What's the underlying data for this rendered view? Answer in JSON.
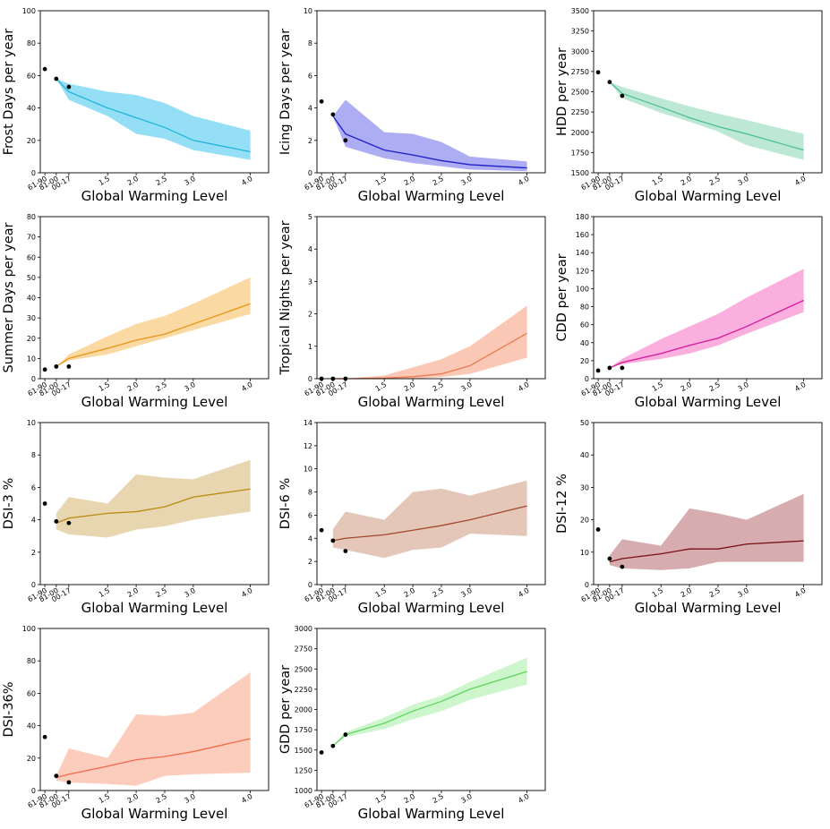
{
  "chart_data": [
    {
      "type": "line",
      "ylabel": "Frost Days per year",
      "xlabel": "Global Warming Level",
      "x_categories": [
        "61-90",
        "81-00",
        "00-17",
        "1.5",
        "2.0",
        "2.5",
        "3.0",
        "4.0"
      ],
      "ylim": [
        0,
        100
      ],
      "yticks": [
        0,
        20,
        40,
        60,
        80,
        100
      ],
      "color": "#1fb6d8",
      "fill_color": "#88dbf4",
      "observations": [
        {
          "x": "61-90",
          "y": 64
        },
        {
          "x": "81-00",
          "y": 58
        },
        {
          "x": "00-17",
          "y": 53
        }
      ],
      "series": [
        {
          "x": [
            "81-00",
            "00-17",
            "1.5",
            "2.0",
            "2.5",
            "3.0",
            "4.0"
          ],
          "values": [
            58,
            50,
            40,
            34,
            28,
            20,
            13
          ]
        }
      ],
      "band_upper": [
        58,
        55,
        50,
        48,
        43,
        35,
        26
      ],
      "band_lower": [
        58,
        45,
        35,
        24,
        21,
        14,
        8
      ]
    },
    {
      "type": "line",
      "ylabel": "Icing Days per year",
      "xlabel": "Global Warming Level",
      "x_categories": [
        "61-90",
        "81-00",
        "00-17",
        "1.5",
        "2.0",
        "2.5",
        "3.0",
        "4.0"
      ],
      "ylim": [
        0,
        10
      ],
      "yticks": [
        0,
        2,
        4,
        6,
        8,
        10
      ],
      "color": "#1e1ec8",
      "fill_color": "#a4a4f2",
      "observations": [
        {
          "x": "61-90",
          "y": 4.4
        },
        {
          "x": "81-00",
          "y": 3.6
        },
        {
          "x": "00-17",
          "y": 2.0
        }
      ],
      "series": [
        {
          "x": [
            "81-00",
            "00-17",
            "1.5",
            "2.0",
            "2.5",
            "3.0",
            "4.0"
          ],
          "values": [
            3.5,
            2.4,
            1.4,
            1.1,
            0.75,
            0.5,
            0.3
          ]
        }
      ],
      "band_upper": [
        3.5,
        4.5,
        2.5,
        2.4,
        1.9,
        1.0,
        0.7
      ],
      "band_lower": [
        3.5,
        1.6,
        0.9,
        0.6,
        0.4,
        0.2,
        0.1
      ]
    },
    {
      "type": "line",
      "ylabel": "HDD per year",
      "xlabel": "Global Warming Level",
      "x_categories": [
        "61-90",
        "81-00",
        "00-17",
        "1.5",
        "2.0",
        "2.5",
        "3.0",
        "4.0"
      ],
      "ylim": [
        1500,
        3500
      ],
      "yticks": [
        1500,
        1750,
        2000,
        2250,
        2500,
        2750,
        3000,
        3250,
        3500
      ],
      "color": "#4cbf94",
      "fill_color": "#b6e6d2",
      "observations": [
        {
          "x": "61-90",
          "y": 2740
        },
        {
          "x": "81-00",
          "y": 2620
        },
        {
          "x": "00-17",
          "y": 2450
        }
      ],
      "series": [
        {
          "x": [
            "81-00",
            "00-17",
            "1.5",
            "2.0",
            "2.5",
            "3.0",
            "4.0"
          ],
          "values": [
            2620,
            2480,
            2310,
            2180,
            2070,
            1980,
            1780
          ]
        }
      ],
      "band_upper": [
        2620,
        2560,
        2420,
        2320,
        2230,
        2150,
        1980
      ],
      "band_lower": [
        2620,
        2420,
        2240,
        2130,
        2010,
        1840,
        1660
      ]
    },
    {
      "type": "line",
      "ylabel": "Summer Days per year",
      "xlabel": "Global Warming Level",
      "x_categories": [
        "61-90",
        "81-00",
        "00-17",
        "1.5",
        "2.0",
        "2.5",
        "3.0",
        "4.0"
      ],
      "ylim": [
        0,
        80
      ],
      "yticks": [
        0,
        10,
        20,
        30,
        40,
        50,
        60,
        70,
        80
      ],
      "color": "#e8961a",
      "fill_color": "#fbd599",
      "observations": [
        {
          "x": "61-90",
          "y": 4.5
        },
        {
          "x": "81-00",
          "y": 6
        },
        {
          "x": "00-17",
          "y": 6
        }
      ],
      "series": [
        {
          "x": [
            "81-00",
            "00-17",
            "1.5",
            "2.0",
            "2.5",
            "3.0",
            "4.0"
          ],
          "values": [
            6,
            10,
            15,
            19,
            22,
            27,
            37
          ]
        }
      ],
      "band_upper": [
        6,
        12,
        21,
        27,
        31,
        37,
        50
      ],
      "band_lower": [
        6,
        9,
        12,
        16,
        20,
        24,
        32
      ]
    },
    {
      "type": "line",
      "ylabel": "Tropical Nights per year",
      "xlabel": "Global Warming Level",
      "x_categories": [
        "61-90",
        "81-00",
        "00-17",
        "1.5",
        "2.0",
        "2.5",
        "3.0",
        "4.0"
      ],
      "ylim": [
        0,
        5
      ],
      "yticks": [
        0,
        1,
        2,
        3,
        4,
        5
      ],
      "color": "#ec7a52",
      "fill_color": "#f9c2ac",
      "observations": [
        {
          "x": "61-90",
          "y": 0
        },
        {
          "x": "81-00",
          "y": 0
        },
        {
          "x": "00-17",
          "y": 0
        }
      ],
      "series": [
        {
          "x": [
            "81-00",
            "00-17",
            "1.5",
            "2.0",
            "2.5",
            "3.0",
            "4.0"
          ],
          "values": [
            0,
            0,
            0.02,
            0.06,
            0.15,
            0.4,
            1.4
          ]
        }
      ],
      "band_upper": [
        0,
        0,
        0.1,
        0.35,
        0.6,
        1.0,
        2.25
      ],
      "band_lower": [
        0,
        0,
        0,
        0,
        0.05,
        0.15,
        0.65
      ]
    },
    {
      "type": "line",
      "ylabel": "CDD per year",
      "xlabel": "Global Warming Level",
      "x_categories": [
        "61-90",
        "81-00",
        "00-17",
        "1.5",
        "2.0",
        "2.5",
        "3.0",
        "4.0"
      ],
      "ylim": [
        0,
        180
      ],
      "yticks": [
        0,
        20,
        40,
        60,
        80,
        100,
        120,
        140,
        160,
        180
      ],
      "color": "#d6189a",
      "fill_color": "#f9a6da",
      "observations": [
        {
          "x": "61-90",
          "y": 9
        },
        {
          "x": "81-00",
          "y": 12
        },
        {
          "x": "00-17",
          "y": 12
        }
      ],
      "series": [
        {
          "x": [
            "81-00",
            "00-17",
            "1.5",
            "2.0",
            "2.5",
            "3.0",
            "4.0"
          ],
          "values": [
            12,
            18,
            28,
            37,
            45,
            58,
            87
          ]
        }
      ],
      "band_upper": [
        12,
        22,
        44,
        58,
        72,
        90,
        122
      ],
      "band_lower": [
        12,
        16,
        22,
        28,
        37,
        50,
        74
      ]
    },
    {
      "type": "line",
      "ylabel": "DSI-3 %",
      "xlabel": "Global Warming Level",
      "x_categories": [
        "61-90",
        "81-00",
        "00-17",
        "1.5",
        "2.0",
        "2.5",
        "3.0",
        "4.0"
      ],
      "ylim": [
        0,
        10
      ],
      "yticks": [
        0,
        2,
        4,
        6,
        8,
        10
      ],
      "color": "#b88a0e",
      "fill_color": "#e6d1a8",
      "observations": [
        {
          "x": "61-90",
          "y": 5.0
        },
        {
          "x": "81-00",
          "y": 3.9
        },
        {
          "x": "00-17",
          "y": 3.8
        }
      ],
      "series": [
        {
          "x": [
            "81-00",
            "00-17",
            "1.5",
            "2.0",
            "2.5",
            "3.0",
            "4.0"
          ],
          "values": [
            3.8,
            4.1,
            4.4,
            4.5,
            4.8,
            5.4,
            5.9
          ]
        }
      ],
      "band_upper": [
        4.4,
        5.4,
        5.0,
        6.8,
        6.6,
        6.5,
        7.7
      ],
      "band_lower": [
        3.4,
        3.1,
        2.9,
        3.4,
        3.6,
        4.0,
        4.5
      ]
    },
    {
      "type": "line",
      "ylabel": "DSI-6 %",
      "xlabel": "Global Warming Level",
      "x_categories": [
        "61-90",
        "81-00",
        "00-17",
        "1.5",
        "2.0",
        "2.5",
        "3.0",
        "4.0"
      ],
      "ylim": [
        0,
        14
      ],
      "yticks": [
        0,
        2,
        4,
        6,
        8,
        10,
        12,
        14
      ],
      "color": "#a4472a",
      "fill_color": "#e2c1b3",
      "observations": [
        {
          "x": "61-90",
          "y": 4.7
        },
        {
          "x": "81-00",
          "y": 3.8
        },
        {
          "x": "00-17",
          "y": 2.9
        }
      ],
      "series": [
        {
          "x": [
            "81-00",
            "00-17",
            "1.5",
            "2.0",
            "2.5",
            "3.0",
            "4.0"
          ],
          "values": [
            3.8,
            4.0,
            4.3,
            4.7,
            5.1,
            5.6,
            6.8
          ]
        }
      ],
      "band_upper": [
        4.8,
        6.3,
        5.6,
        8.0,
        8.3,
        7.7,
        9.0
      ],
      "band_lower": [
        3.2,
        3.0,
        2.3,
        3.0,
        3.2,
        4.4,
        4.2
      ]
    },
    {
      "type": "line",
      "ylabel": "DSI-12 %",
      "xlabel": "Global Warming Level",
      "x_categories": [
        "61-90",
        "81-00",
        "00-17",
        "1.5",
        "2.0",
        "2.5",
        "3.0",
        "4.0"
      ],
      "ylim": [
        0,
        50
      ],
      "yticks": [
        0,
        10,
        20,
        30,
        40,
        50
      ],
      "color": "#7a0f14",
      "fill_color": "#d1a3a6",
      "observations": [
        {
          "x": "61-90",
          "y": 17
        },
        {
          "x": "81-00",
          "y": 8
        },
        {
          "x": "00-17",
          "y": 5.5
        }
      ],
      "series": [
        {
          "x": [
            "81-00",
            "00-17",
            "1.5",
            "2.0",
            "2.5",
            "3.0",
            "4.0"
          ],
          "values": [
            7,
            8,
            9.5,
            11,
            11,
            12.5,
            13.5
          ]
        }
      ],
      "band_upper": [
        9,
        14,
        12,
        23.5,
        22,
        20,
        28
      ],
      "band_lower": [
        6,
        5,
        4.5,
        5,
        7,
        7,
        7
      ]
    },
    {
      "type": "line",
      "ylabel": "DSI-36%",
      "xlabel": "Global Warming Level",
      "x_categories": [
        "61-90",
        "81-00",
        "00-17",
        "1.5",
        "2.0",
        "2.5",
        "3.0",
        "4.0"
      ],
      "ylim": [
        0,
        100
      ],
      "yticks": [
        0,
        20,
        40,
        60,
        80,
        100
      ],
      "color": "#f26a4a",
      "fill_color": "#fcc7b6",
      "observations": [
        {
          "x": "61-90",
          "y": 33
        },
        {
          "x": "81-00",
          "y": 9
        },
        {
          "x": "00-17",
          "y": 5
        }
      ],
      "series": [
        {
          "x": [
            "81-00",
            "00-17",
            "1.5",
            "2.0",
            "2.5",
            "3.0",
            "4.0"
          ],
          "values": [
            8,
            10,
            15,
            19,
            21,
            24,
            32
          ]
        }
      ],
      "band_upper": [
        9,
        26,
        20,
        47,
        46,
        48,
        73
      ],
      "band_lower": [
        6,
        5,
        4,
        3,
        9,
        10,
        11
      ]
    },
    {
      "type": "line",
      "ylabel": "GDD per year",
      "xlabel": "Global Warming Level",
      "x_categories": [
        "61-90",
        "81-00",
        "00-17",
        "1.5",
        "2.0",
        "2.5",
        "3.0",
        "4.0"
      ],
      "ylim": [
        1000,
        3000
      ],
      "yticks": [
        1000,
        1250,
        1500,
        1750,
        2000,
        2250,
        2500,
        2750,
        3000
      ],
      "color": "#5fd35f",
      "fill_color": "#c8f5c8",
      "observations": [
        {
          "x": "61-90",
          "y": 1470
        },
        {
          "x": "81-00",
          "y": 1550
        },
        {
          "x": "00-17",
          "y": 1690
        }
      ],
      "series": [
        {
          "x": [
            "81-00",
            "00-17",
            "1.5",
            "2.0",
            "2.5",
            "3.0",
            "4.0"
          ],
          "values": [
            1550,
            1690,
            1830,
            1980,
            2100,
            2250,
            2470
          ]
        }
      ],
      "band_upper": [
        1550,
        1720,
        1900,
        2060,
        2170,
        2340,
        2640
      ],
      "band_lower": [
        1550,
        1660,
        1760,
        1880,
        1980,
        2120,
        2310
      ]
    }
  ]
}
